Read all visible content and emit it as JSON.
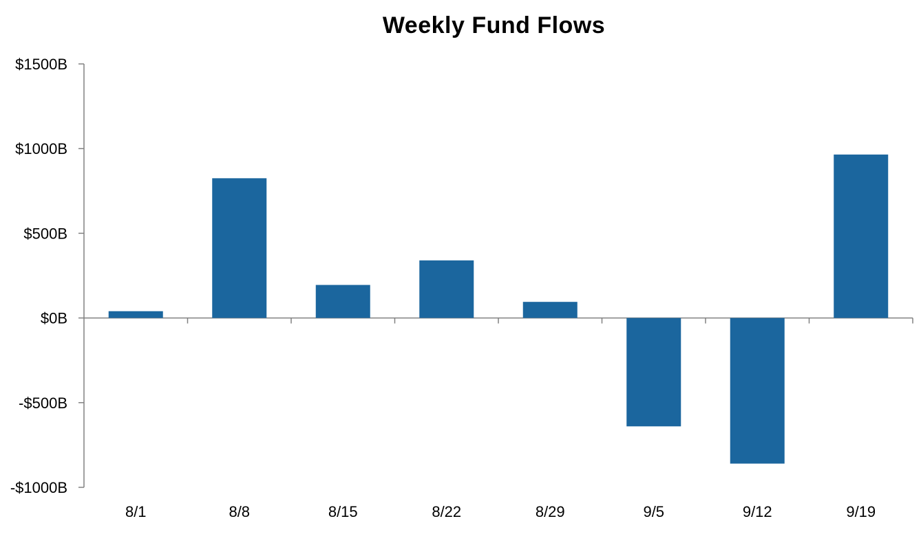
{
  "chart_data": {
    "type": "bar",
    "title": "Weekly Fund Flows",
    "xlabel": "",
    "ylabel": "",
    "categories": [
      "8/1",
      "8/8",
      "8/15",
      "8/22",
      "8/29",
      "9/5",
      "9/12",
      "9/19"
    ],
    "values": [
      40,
      825,
      195,
      340,
      95,
      -640,
      -860,
      965
    ],
    "ylim": [
      -1000,
      1500
    ],
    "y_ticks": [
      1500,
      1000,
      500,
      0,
      -500,
      -1000
    ],
    "y_tick_labels": [
      "$1500B",
      "$1000B",
      "$500B",
      "$0B",
      "-$500B",
      "-$1000B"
    ],
    "grid": false,
    "legend": "none",
    "bar_color": "#1b669e",
    "axis_color": "#808080"
  }
}
